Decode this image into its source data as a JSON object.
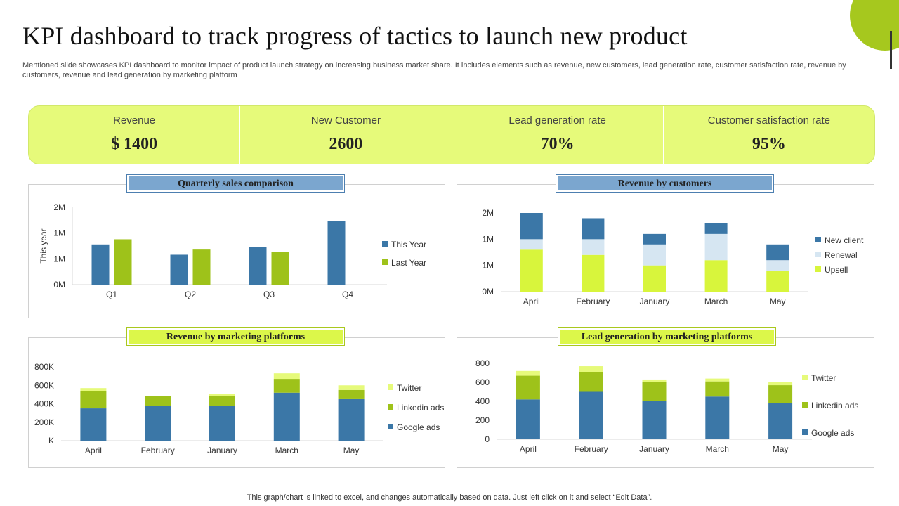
{
  "title": "KPI dashboard to track progress of tactics to launch new product",
  "subtitle": "Mentioned slide showcases KPI dashboard to monitor impact of product launch strategy on increasing business market share. It includes elements such as revenue, new customers, lead generation rate, customer satisfaction rate, revenue by customers, revenue and lead generation by marketing platform",
  "kpis": [
    {
      "label": "Revenue",
      "value": "$ 1400"
    },
    {
      "label": "New Customer",
      "value": "2600"
    },
    {
      "label": "Lead generation rate",
      "value": "70%"
    },
    {
      "label": "Customer satisfaction rate",
      "value": "95%"
    }
  ],
  "footer": "This graph/chart is linked to excel,  and changes automatically based on data. Just left click on it and select “Edit Data”.",
  "colors": {
    "blue": "#3b77a7",
    "green": "#9ec21a",
    "lime": "#d8f53c",
    "pale": "#d6e6f2",
    "yellowgreen": "#e6fa7a"
  },
  "chart_data": [
    {
      "type": "bar",
      "title": "Quarterly sales comparison",
      "categories": [
        "Q1",
        "Q2",
        "Q3",
        "Q4"
      ],
      "series": [
        {
          "name": "This Year",
          "color": "#3b77a7",
          "values": [
            0.78,
            0.58,
            0.73,
            1.23
          ]
        },
        {
          "name": "Last Year",
          "color": "#9ec21a",
          "values": [
            0.88,
            0.68,
            0.63,
            0
          ]
        }
      ],
      "ylabel": "This year",
      "ylim": [
        0,
        1.5
      ],
      "yticks": [
        0,
        0.5,
        1.0,
        1.5
      ],
      "ytick_labels": [
        "0M",
        "1M",
        "1M",
        "2M"
      ],
      "legend": "right"
    },
    {
      "type": "bar",
      "stacked": true,
      "title": "Revenue by customers",
      "categories": [
        "April",
        "February",
        "January",
        "March",
        "May"
      ],
      "series": [
        {
          "name": "Upsell",
          "color": "#d8f53c",
          "values": [
            0.8,
            0.7,
            0.5,
            0.6,
            0.4
          ]
        },
        {
          "name": "Renewal",
          "color": "#d6e6f2",
          "values": [
            0.2,
            0.3,
            0.4,
            0.5,
            0.2
          ]
        },
        {
          "name": "New client",
          "color": "#3b77a7",
          "values": [
            0.5,
            0.4,
            0.2,
            0.2,
            0.3
          ]
        }
      ],
      "legend_order": [
        "New client",
        "Renewal",
        "Upsell"
      ],
      "ylim": [
        0,
        1.5
      ],
      "yticks": [
        0,
        0.5,
        1.0,
        1.5
      ],
      "ytick_labels": [
        "0M",
        "1M",
        "1M",
        "2M"
      ],
      "legend": "right"
    },
    {
      "type": "bar",
      "stacked": true,
      "title": "Revenue by marketing platforms",
      "categories": [
        "April",
        "February",
        "January",
        "March",
        "May"
      ],
      "series": [
        {
          "name": "Google ads",
          "color": "#3b77a7",
          "values": [
            350,
            380,
            380,
            520,
            450
          ]
        },
        {
          "name": "Linkedin ads",
          "color": "#9ec21a",
          "values": [
            190,
            100,
            100,
            150,
            100
          ]
        },
        {
          "name": "Twitter",
          "color": "#e6fa7a",
          "values": [
            30,
            0,
            30,
            60,
            50
          ]
        }
      ],
      "legend_order": [
        "Twitter",
        "Linkedin ads",
        "Google ads"
      ],
      "ylim": [
        0,
        800
      ],
      "yticks": [
        0,
        200,
        400,
        600,
        800
      ],
      "ytick_labels": [
        "K",
        "200K",
        "400K",
        "600K",
        "800K"
      ],
      "legend": "right"
    },
    {
      "type": "bar",
      "stacked": true,
      "title": "Lead generation by marketing platforms",
      "categories": [
        "April",
        "February",
        "January",
        "March",
        "May"
      ],
      "series": [
        {
          "name": "Google ads",
          "color": "#3b77a7",
          "values": [
            420,
            500,
            400,
            450,
            380
          ]
        },
        {
          "name": "Linkedin ads",
          "color": "#9ec21a",
          "values": [
            250,
            210,
            200,
            160,
            190
          ]
        },
        {
          "name": "Twitter",
          "color": "#e6fa7a",
          "values": [
            50,
            60,
            30,
            30,
            30
          ]
        }
      ],
      "legend_order": [
        "Twitter",
        "Linkedin ads",
        "Google ads"
      ],
      "ylim": [
        0,
        800
      ],
      "yticks": [
        0,
        200,
        400,
        600,
        800
      ],
      "ytick_labels": [
        "0",
        "200",
        "400",
        "600",
        "800"
      ],
      "legend": "right"
    }
  ]
}
